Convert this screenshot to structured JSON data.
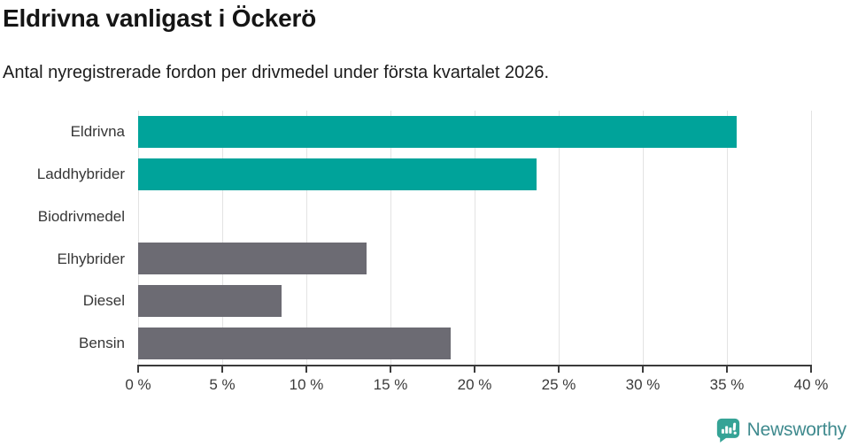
{
  "header": {
    "title": "Eldrivna vanligast i Öckerö",
    "subtitle": "Antal nyregistrerade fordon per drivmedel under första kvartalet 2026."
  },
  "chart_data": {
    "type": "bar",
    "orientation": "horizontal",
    "title": "Eldrivna vanligast i Öckerö",
    "subtitle": "Antal nyregistrerade fordon per drivmedel under första kvartalet 2026.",
    "categories": [
      "Eldrivna",
      "Laddhybrider",
      "Biodrivmedel",
      "Elhybrider",
      "Diesel",
      "Bensin"
    ],
    "values": [
      35.6,
      23.7,
      0,
      13.6,
      8.5,
      18.6
    ],
    "value_unit": "%",
    "xlim": [
      0,
      40
    ],
    "xticks": [
      0,
      5,
      10,
      15,
      20,
      25,
      30,
      35,
      40
    ],
    "xtick_labels": [
      "0 %",
      "5 %",
      "10 %",
      "15 %",
      "20 %",
      "25 %",
      "30 %",
      "35 %",
      "40 %"
    ],
    "grid": true,
    "legend": false,
    "colors": {
      "highlight": "#00a39a",
      "default": "#6c6b73",
      "bar_colors": [
        "#00a39a",
        "#00a39a",
        "#00a39a",
        "#6c6b73",
        "#6c6b73",
        "#6c6b73"
      ],
      "gridline": "#e3e3e3",
      "axis": "#3b3b3b"
    }
  },
  "footer": {
    "brand": "Newsworthy",
    "logo_icon": "newsworthy-bar-chart-speech-bubble",
    "brand_text_color": "#3f8a8e",
    "icon_color": "#35a396"
  }
}
